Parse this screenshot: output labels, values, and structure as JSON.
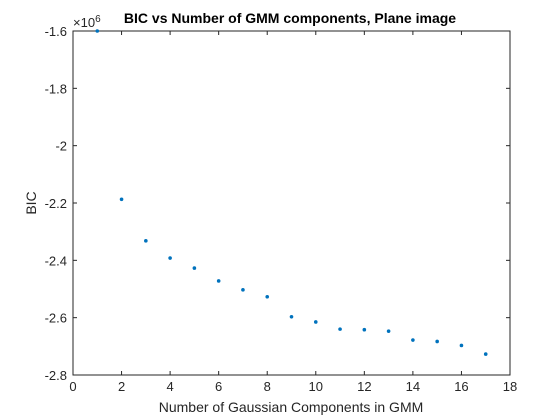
{
  "chart_data": {
    "type": "scatter",
    "title": "BIC vs Number of GMM components, Plane image",
    "xlabel": "Number of Gaussian Components in GMM",
    "ylabel": "BIC",
    "y_exponent": "×10",
    "y_exponent_power": "6",
    "xlim": [
      0,
      18
    ],
    "ylim": [
      -2.8,
      -1.6
    ],
    "xticks": [
      "0",
      "2",
      "4",
      "6",
      "8",
      "10",
      "12",
      "14",
      "16",
      "18"
    ],
    "yticks": [
      "-2.8",
      "-2.6",
      "-2.4",
      "-2.2",
      "-2",
      "-1.8",
      "-1.6"
    ],
    "grid": false,
    "marker_color": "#0072BD",
    "x": [
      1,
      2,
      3,
      4,
      5,
      6,
      7,
      8,
      9,
      10,
      11,
      12,
      13,
      14,
      15,
      16,
      17
    ],
    "y": [
      -1.6,
      -2.187,
      -2.332,
      -2.392,
      -2.427,
      -2.472,
      -2.503,
      -2.527,
      -2.597,
      -2.615,
      -2.64,
      -2.642,
      -2.647,
      -2.678,
      -2.683,
      -2.697,
      -2.727
    ]
  }
}
